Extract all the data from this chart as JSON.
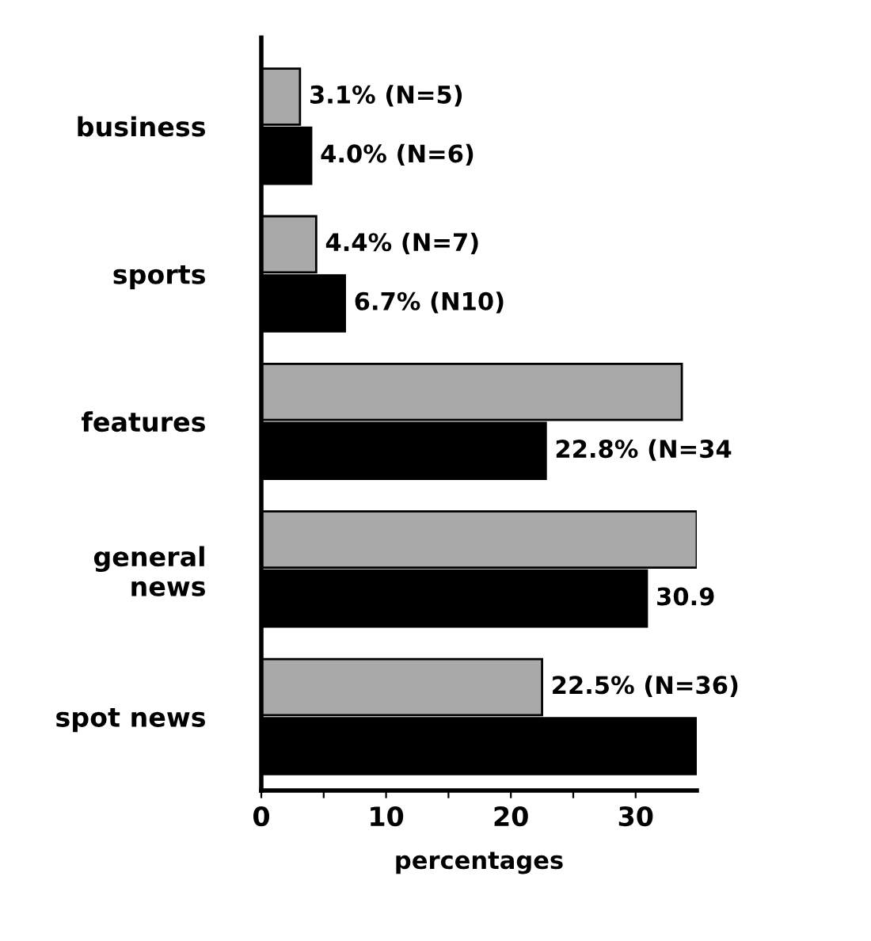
{
  "chart_data": {
    "type": "bar",
    "orientation": "horizontal",
    "xlabel": "percentages",
    "categories": [
      "business",
      "sports",
      "features",
      "general\nnews",
      "spot news"
    ],
    "series": [
      {
        "color": "#a9a9a9",
        "values": [
          3.1,
          4.4,
          33.7,
          34.9,
          22.5
        ],
        "value_labels": [
          "3.1% (N=5)",
          "4.4% (N=7)",
          null,
          null,
          "22.5% (N=36)"
        ]
      },
      {
        "color": "#000000",
        "values": [
          4.0,
          6.7,
          22.8,
          30.9,
          34.9
        ],
        "value_labels": [
          "4.0% (N=6)",
          "6.7% (N10)",
          "22.8% (N=34",
          "30.9",
          null
        ]
      }
    ],
    "xlim": [
      0,
      34.9
    ],
    "xticks": [
      0,
      {
        "value": 5,
        "label": null
      },
      10,
      {
        "value": 15,
        "label": null
      },
      20,
      {
        "value": 25,
        "label": null
      },
      30
    ],
    "grid": false,
    "legend": false
  }
}
